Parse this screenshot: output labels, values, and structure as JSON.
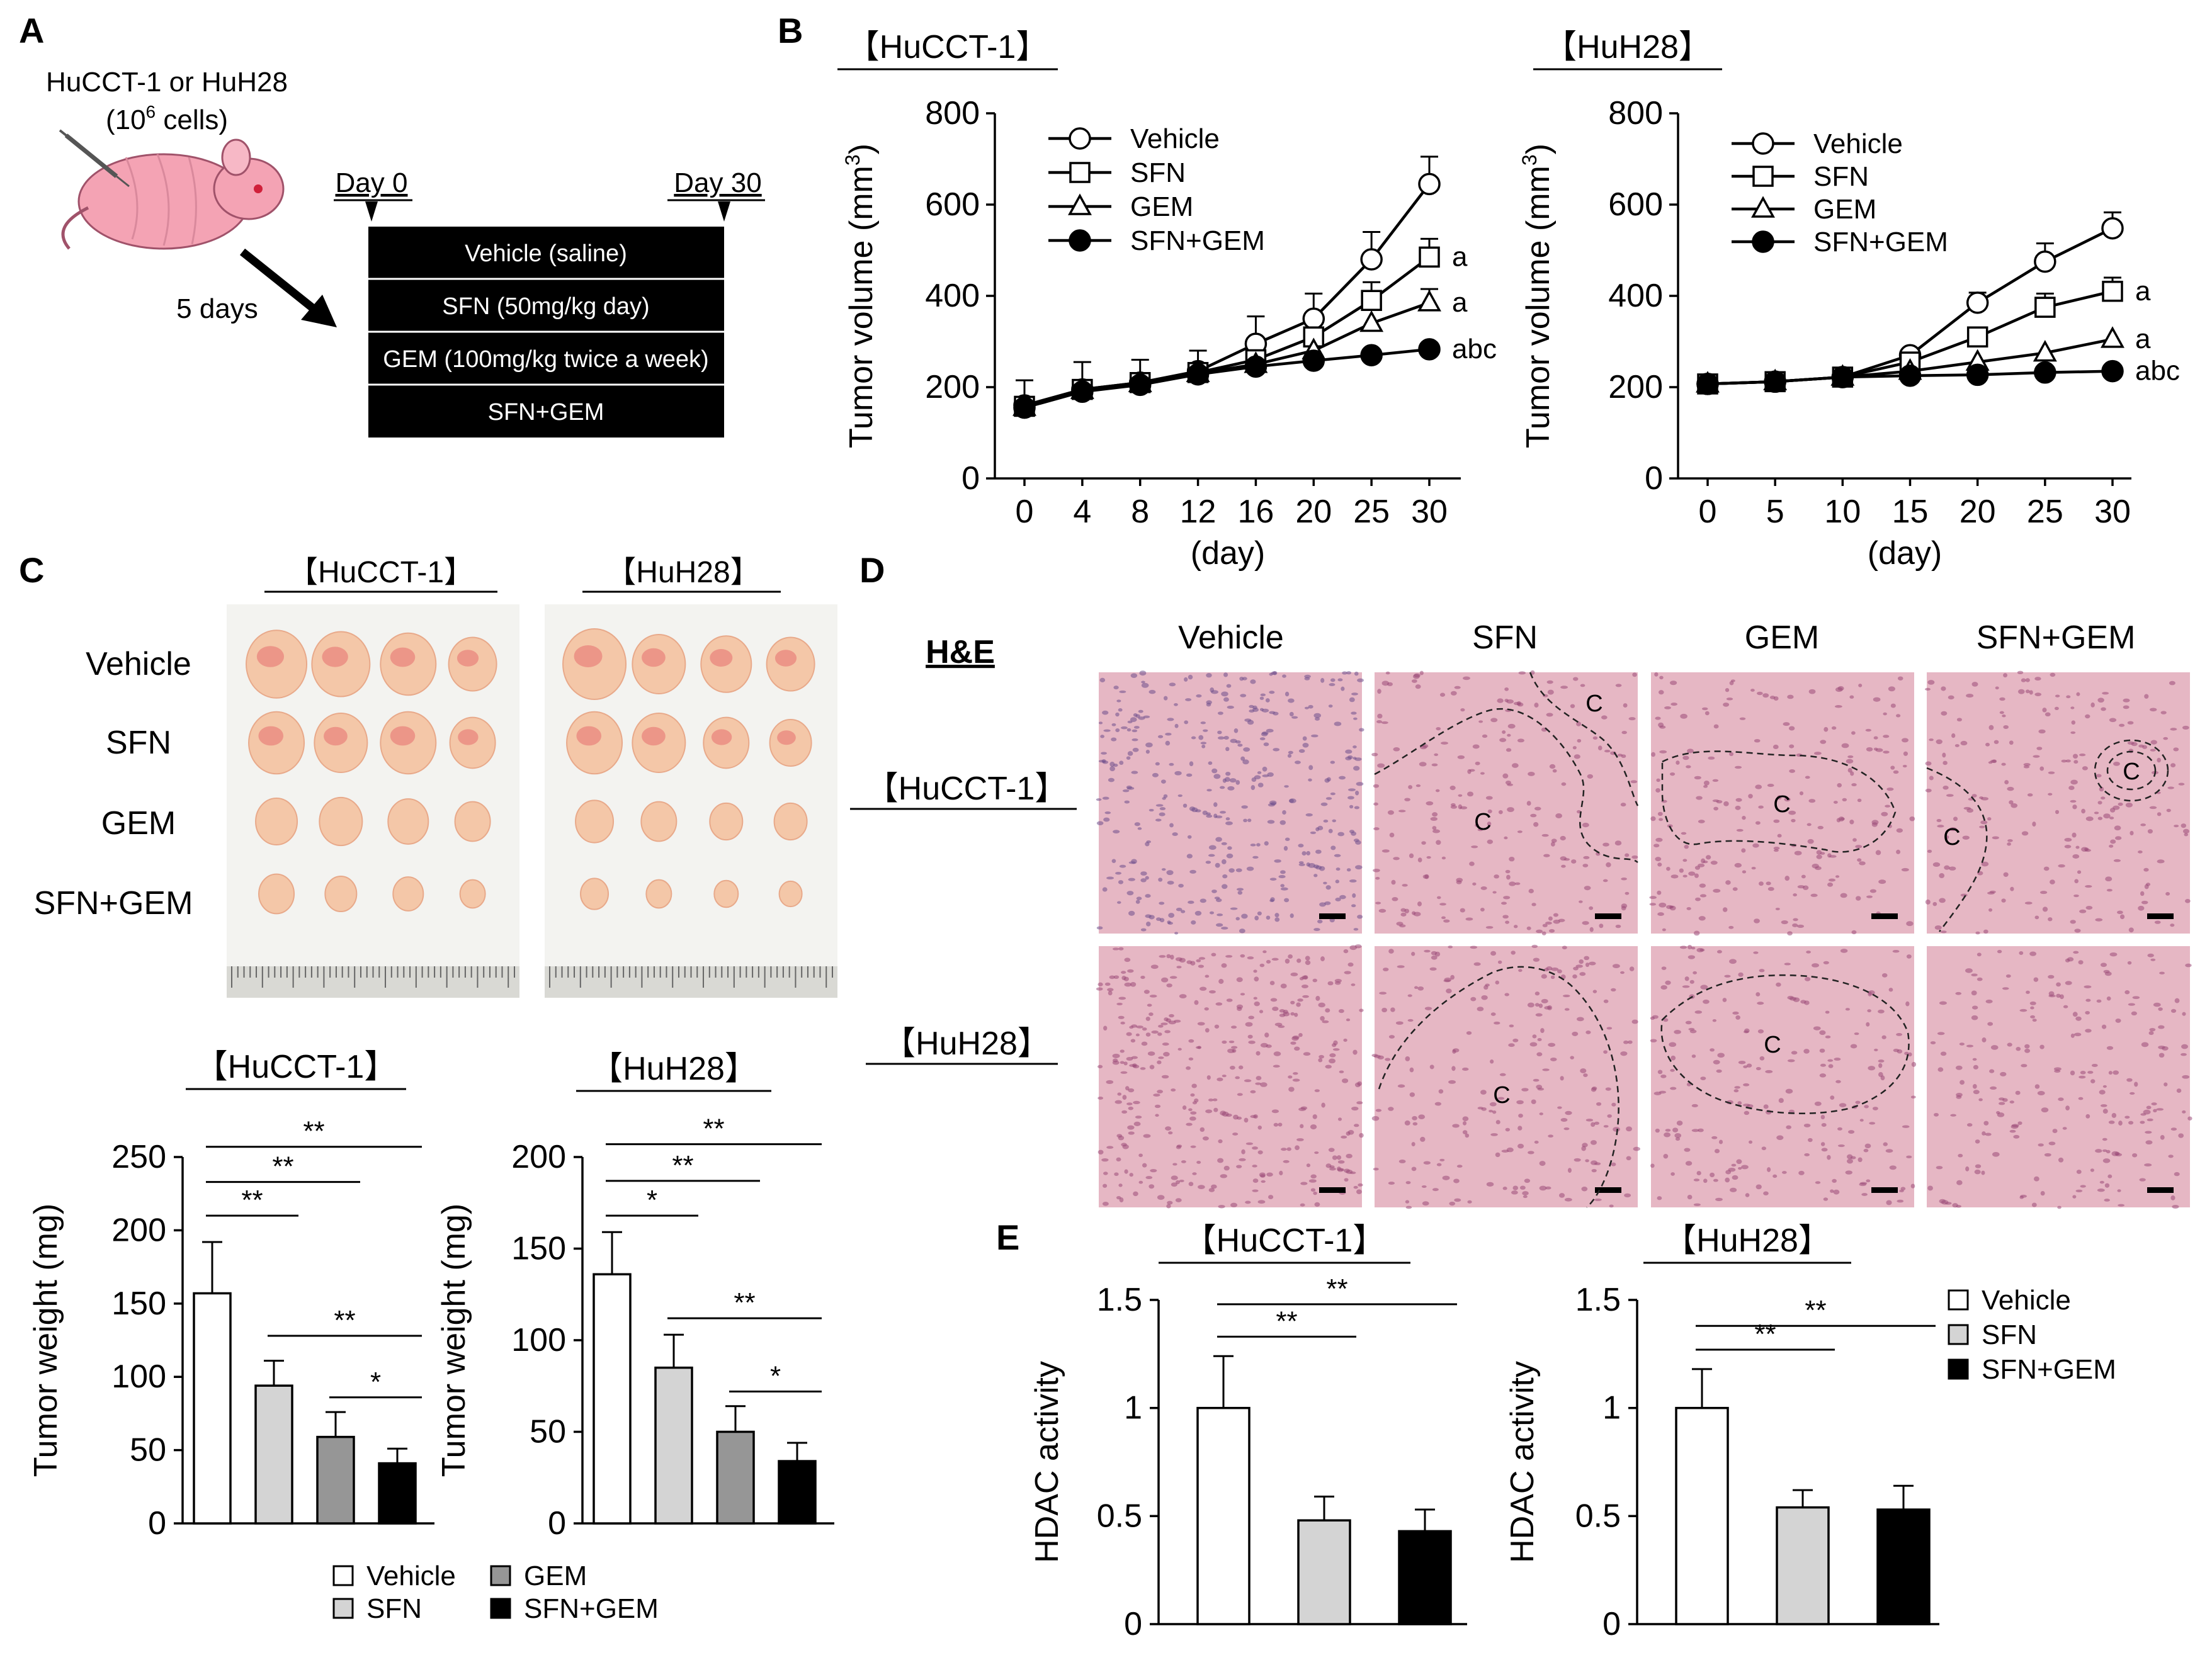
{
  "panel_labels": {
    "a": "A",
    "b": "B",
    "c": "C",
    "d": "D",
    "e": "E"
  },
  "colors": {
    "vehicle": "#ffffff",
    "sfn": "#d4d4d4",
    "gem": "#969696",
    "sfn_gem": "#000000",
    "tumor": "#f4c7a8",
    "tissue": "#e6b7c4"
  },
  "schematic": {
    "cells_line1": "HuCCT-1 or HuH28",
    "cells_line2_pre": "(10",
    "cells_sup": "6",
    "cells_line2_post": " cells)",
    "wait": "5 days",
    "day0": "Day 0",
    "day30": "Day 30",
    "treatments": [
      "Vehicle (saline)",
      "SFN (50mg/kg day)",
      "GEM (100mg/kg twice a week)",
      "SFN+GEM"
    ]
  },
  "photos": {
    "title_hucct1": "【HuCCT-1】",
    "title_huh28": "【HuH28】",
    "rows": [
      "Vehicle",
      "SFN",
      "GEM",
      "SFN+GEM"
    ]
  },
  "histology": {
    "stain": "H&E",
    "columns": [
      "Vehicle",
      "SFN",
      "GEM",
      "SFN+GEM"
    ],
    "rows": [
      "【HuCCT-1】",
      "【HuH28】"
    ],
    "necrosis_label": "C"
  },
  "chart_data": [
    {
      "id": "B-left",
      "type": "line",
      "title": "【HuCCT-1】",
      "xlabel": "(day)",
      "ylabel_pre": "Tumor volume (mm",
      "ylabel_sup": "3",
      "ylabel_post": ")",
      "x": [
        0,
        4,
        8,
        12,
        16,
        20,
        25,
        30
      ],
      "x_tick_labels": [
        "0",
        "4",
        "8",
        "12",
        "16",
        "20",
        "25",
        "30"
      ],
      "ylim": [
        0,
        800
      ],
      "y_ticks": [
        0,
        200,
        400,
        600,
        800
      ],
      "series": [
        {
          "name": "Vehicle",
          "marker": "circle-open",
          "values": [
            160,
            195,
            210,
            235,
            295,
            350,
            480,
            645
          ],
          "errors": [
            55,
            60,
            50,
            45,
            60,
            55,
            60,
            60
          ],
          "annotation": ""
        },
        {
          "name": "SFN",
          "marker": "square-open",
          "values": [
            158,
            195,
            210,
            232,
            260,
            310,
            390,
            485
          ],
          "errors": [
            0,
            0,
            0,
            0,
            0,
            0,
            40,
            40
          ],
          "annotation": "a"
        },
        {
          "name": "GEM",
          "marker": "triangle-open",
          "values": [
            156,
            193,
            208,
            230,
            250,
            280,
            340,
            385
          ],
          "errors": [
            0,
            0,
            0,
            0,
            0,
            0,
            0,
            30
          ],
          "annotation": "a"
        },
        {
          "name": "SFN+GEM",
          "marker": "circle-filled",
          "values": [
            155,
            190,
            205,
            228,
            245,
            258,
            270,
            283
          ],
          "errors": [
            0,
            0,
            0,
            0,
            0,
            0,
            0,
            0
          ],
          "annotation": "abc"
        }
      ]
    },
    {
      "id": "B-right",
      "type": "line",
      "title": "【HuH28】",
      "xlabel": "(day)",
      "ylabel_pre": "Tumor volume (mm",
      "ylabel_sup": "3",
      "ylabel_post": ")",
      "x": [
        0,
        5,
        10,
        15,
        20,
        25,
        30
      ],
      "x_tick_labels": [
        "0",
        "5",
        "10",
        "15",
        "20",
        "25",
        "30"
      ],
      "ylim": [
        0,
        800
      ],
      "y_ticks": [
        0,
        200,
        400,
        600,
        800
      ],
      "series": [
        {
          "name": "Vehicle",
          "marker": "circle-open",
          "values": [
            207,
            212,
            222,
            270,
            385,
            475,
            548
          ],
          "errors": [
            0,
            0,
            0,
            12,
            22,
            40,
            35
          ],
          "annotation": ""
        },
        {
          "name": "SFN",
          "marker": "square-open",
          "values": [
            207,
            212,
            222,
            255,
            310,
            375,
            410
          ],
          "errors": [
            0,
            0,
            0,
            0,
            0,
            30,
            30
          ],
          "annotation": "a"
        },
        {
          "name": "GEM",
          "marker": "triangle-open",
          "values": [
            207,
            212,
            222,
            235,
            255,
            275,
            305
          ],
          "errors": [
            0,
            0,
            0,
            0,
            0,
            0,
            0
          ],
          "annotation": "a"
        },
        {
          "name": "SFN+GEM",
          "marker": "circle-filled",
          "values": [
            207,
            212,
            222,
            225,
            227,
            232,
            235
          ],
          "errors": [
            0,
            0,
            0,
            0,
            0,
            0,
            0
          ],
          "annotation": "abc"
        }
      ]
    },
    {
      "id": "C-left",
      "type": "bar",
      "title": "【HuCCT-1】",
      "ylabel": "Tumor weight (mg)",
      "categories": [
        "Vehicle",
        "SFN",
        "GEM",
        "SFN+GEM"
      ],
      "values": [
        157,
        94,
        59,
        41
      ],
      "errors": [
        35,
        17,
        17,
        10
      ],
      "ylim": [
        0,
        250
      ],
      "y_ticks": [
        0,
        50,
        100,
        150,
        200,
        250
      ],
      "significance": [
        {
          "from": 0,
          "to": 1,
          "label": "**",
          "level": 210
        },
        {
          "from": 0,
          "to": 2,
          "label": "**",
          "level": 233
        },
        {
          "from": 0,
          "to": 3,
          "label": "**",
          "level": 257
        },
        {
          "from": 1,
          "to": 3,
          "label": "**",
          "level": 128
        },
        {
          "from": 2,
          "to": 3,
          "label": "*",
          "level": 86
        }
      ]
    },
    {
      "id": "C-right",
      "type": "bar",
      "title": "【HuH28】",
      "ylabel": "Tumor weight (mg)",
      "categories": [
        "Vehicle",
        "SFN",
        "GEM",
        "SFN+GEM"
      ],
      "values": [
        136,
        85,
        50,
        34
      ],
      "errors": [
        23,
        18,
        14,
        10
      ],
      "ylim": [
        0,
        200
      ],
      "y_ticks": [
        0,
        50,
        100,
        150,
        200
      ],
      "significance": [
        {
          "from": 0,
          "to": 1,
          "label": "*",
          "level": 168
        },
        {
          "from": 0,
          "to": 2,
          "label": "**",
          "level": 187
        },
        {
          "from": 0,
          "to": 3,
          "label": "**",
          "level": 207
        },
        {
          "from": 1,
          "to": 3,
          "label": "**",
          "level": 112
        },
        {
          "from": 2,
          "to": 3,
          "label": "*",
          "level": 72
        }
      ]
    },
    {
      "id": "E-left",
      "type": "bar",
      "title": "【HuCCT-1】",
      "ylabel": "HDAC activity",
      "categories": [
        "Vehicle",
        "SFN",
        "SFN+GEM"
      ],
      "values": [
        1.0,
        0.48,
        0.43
      ],
      "errors": [
        0.24,
        0.11,
        0.1
      ],
      "ylim": [
        0,
        1.5
      ],
      "y_ticks": [
        0,
        0.5,
        1,
        1.5
      ],
      "y_tick_labels": [
        "0",
        "0.5",
        "1",
        "1.5"
      ],
      "significance": [
        {
          "from": 0,
          "to": 1,
          "label": "**",
          "level": 1.33
        },
        {
          "from": 0,
          "to": 2,
          "label": "**",
          "level": 1.48
        }
      ]
    },
    {
      "id": "E-right",
      "type": "bar",
      "title": "【HuH28】",
      "ylabel": "HDAC activity",
      "categories": [
        "Vehicle",
        "SFN",
        "SFN+GEM"
      ],
      "values": [
        1.0,
        0.54,
        0.53
      ],
      "errors": [
        0.18,
        0.08,
        0.11
      ],
      "ylim": [
        0,
        1.5
      ],
      "y_ticks": [
        0,
        0.5,
        1,
        1.5
      ],
      "y_tick_labels": [
        "0",
        "0.5",
        "1",
        "1.5"
      ],
      "significance": [
        {
          "from": 0,
          "to": 1,
          "label": "**",
          "level": 1.27
        },
        {
          "from": 0,
          "to": 2,
          "label": "**",
          "level": 1.38
        }
      ]
    }
  ],
  "legend_c": [
    "Vehicle",
    "SFN",
    "GEM",
    "SFN+GEM"
  ],
  "legend_e": [
    "Vehicle",
    "SFN",
    "SFN+GEM"
  ]
}
